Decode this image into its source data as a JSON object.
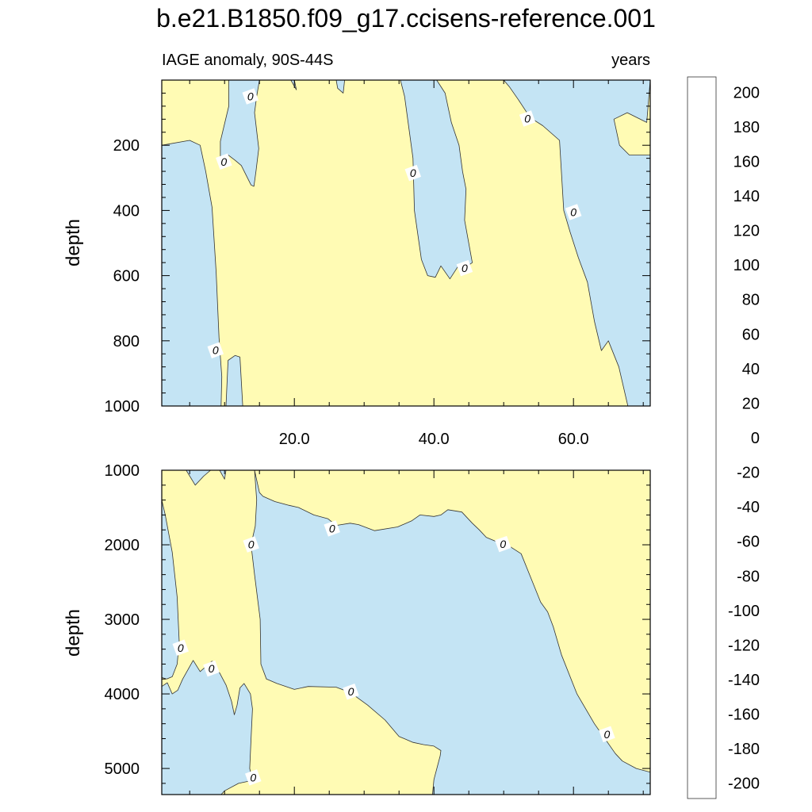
{
  "title": "b.e21.B1850.f09_g17.ccisens-reference.001",
  "subtitle_left": "IAGE anomaly, 90S-44S",
  "subtitle_right": "years",
  "colors": {
    "positive_fill": "#fffbb4",
    "negative_fill": "#c4e4f4",
    "contour_line": "#333333"
  },
  "chart_data": [
    {
      "type": "heatmap",
      "panel": "upper",
      "ylabel": "depth",
      "xlim": [
        1,
        71
      ],
      "ylim": [
        0,
        1000
      ],
      "y_reversed": true,
      "x_ticks": [
        20,
        40,
        60
      ],
      "x_tick_labels": [
        "20.0",
        "40.0",
        "60.0"
      ],
      "y_ticks": [
        200,
        400,
        600,
        800,
        1000
      ],
      "y_tick_labels": [
        "200",
        "400",
        "600",
        "800",
        "1000"
      ],
      "contour_labels": [
        {
          "text": "0",
          "x": 13.7,
          "y": 50
        },
        {
          "text": "0",
          "x": 9.9,
          "y": 250
        },
        {
          "text": "0",
          "x": 37.0,
          "y": 285
        },
        {
          "text": "0",
          "x": 44.4,
          "y": 577
        },
        {
          "text": "0",
          "x": 53.4,
          "y": 118
        },
        {
          "text": "0",
          "x": 60.0,
          "y": 405
        },
        {
          "text": "0",
          "x": 8.7,
          "y": 829
        }
      ],
      "negative_regions": [
        [
          [
            1,
            0
          ],
          [
            1,
            200
          ],
          [
            5,
            185
          ],
          [
            6.5,
            200
          ],
          [
            7.3,
            280
          ],
          [
            8.2,
            390
          ],
          [
            8.8,
            590
          ],
          [
            9.2,
            790
          ],
          [
            9.6,
            910
          ],
          [
            9.5,
            1000
          ],
          [
            1,
            1000
          ]
        ],
        [
          [
            10.5,
            860
          ],
          [
            11.5,
            845
          ],
          [
            12.2,
            850
          ],
          [
            12.6,
            1000
          ],
          [
            10.2,
            1000
          ]
        ],
        [
          [
            9.4,
            250
          ],
          [
            10.4,
            228
          ],
          [
            11.5,
            246
          ],
          [
            12.4,
            262
          ],
          [
            13.8,
            322
          ],
          [
            14.2,
            326
          ],
          [
            14.5,
            280
          ],
          [
            14.9,
            210
          ],
          [
            14.3,
            100
          ],
          [
            14.6,
            50
          ],
          [
            15,
            0
          ],
          [
            10.6,
            0
          ],
          [
            10.6,
            80
          ],
          [
            9.4,
            188
          ]
        ],
        [
          [
            19.5,
            0
          ],
          [
            20.3,
            30
          ],
          [
            20,
            0
          ]
        ],
        [
          [
            26,
            0
          ],
          [
            26.2,
            25
          ],
          [
            27,
            40
          ],
          [
            27.2,
            0
          ]
        ],
        [
          [
            35.2,
            0
          ],
          [
            35.8,
            50
          ],
          [
            37,
            240
          ],
          [
            37.2,
            400
          ],
          [
            38.2,
            550
          ],
          [
            39.1,
            600
          ],
          [
            40.2,
            605
          ],
          [
            41,
            570
          ],
          [
            42.3,
            610
          ],
          [
            43.5,
            570
          ],
          [
            44.5,
            575
          ],
          [
            45.5,
            560
          ],
          [
            44.4,
            430
          ],
          [
            44.6,
            335
          ],
          [
            44.1,
            280
          ],
          [
            43.6,
            200
          ],
          [
            42.5,
            130
          ],
          [
            41.6,
            40
          ],
          [
            40.4,
            0
          ]
        ],
        [
          [
            50,
            0
          ],
          [
            50.8,
            20
          ],
          [
            52.1,
            60
          ],
          [
            53.8,
            115
          ],
          [
            55.6,
            140
          ],
          [
            58,
            185
          ],
          [
            58.6,
            400
          ],
          [
            59.5,
            465
          ],
          [
            60.7,
            545
          ],
          [
            62,
            620
          ],
          [
            63,
            740
          ],
          [
            64,
            830
          ],
          [
            65,
            800
          ],
          [
            66.5,
            880
          ],
          [
            67.8,
            1000
          ],
          [
            71,
            1000
          ],
          [
            71,
            230
          ],
          [
            68,
            230
          ],
          [
            66.6,
            200
          ],
          [
            65.8,
            120
          ],
          [
            67.7,
            100
          ],
          [
            70.5,
            130
          ],
          [
            71,
            0
          ]
        ]
      ]
    },
    {
      "type": "heatmap",
      "panel": "lower",
      "ylabel": "depth",
      "xlim": [
        1,
        71
      ],
      "ylim": [
        1000,
        5350
      ],
      "y_reversed": true,
      "x_ticks": [
        20,
        40,
        60
      ],
      "x_tick_labels": [
        "",
        "",
        ""
      ],
      "y_ticks": [
        1000,
        2000,
        3000,
        4000,
        5000
      ],
      "y_tick_labels": [
        "1000",
        "2000",
        "3000",
        "4000",
        "5000"
      ],
      "contour_labels": [
        {
          "text": "0",
          "x": 13.8,
          "y": 1995
        },
        {
          "text": "0",
          "x": 25.4,
          "y": 1780
        },
        {
          "text": "0",
          "x": 49.9,
          "y": 1990
        },
        {
          "text": "0",
          "x": 3.7,
          "y": 3380
        },
        {
          "text": "0",
          "x": 8.1,
          "y": 3660
        },
        {
          "text": "0",
          "x": 28.1,
          "y": 3970
        },
        {
          "text": "0",
          "x": 64.8,
          "y": 4540
        },
        {
          "text": "0",
          "x": 14.1,
          "y": 5120
        }
      ],
      "negative_regions": [
        [
          [
            1,
            1000
          ],
          [
            1,
            1400
          ],
          [
            1.5,
            1600
          ],
          [
            2.5,
            2100
          ],
          [
            3.2,
            2700
          ],
          [
            3.5,
            3300
          ],
          [
            3.2,
            3600
          ],
          [
            2.5,
            3770
          ],
          [
            1.7,
            3800
          ],
          [
            1,
            3780
          ]
        ],
        [
          [
            1,
            3900
          ],
          [
            1.8,
            3850
          ],
          [
            2.5,
            4000
          ],
          [
            3.3,
            3950
          ],
          [
            4,
            3800
          ],
          [
            5.5,
            3550
          ],
          [
            6.5,
            3700
          ],
          [
            8.2,
            3560
          ],
          [
            9.3,
            3720
          ],
          [
            10.2,
            3880
          ],
          [
            11,
            4100
          ],
          [
            11.4,
            4280
          ],
          [
            11.8,
            4150
          ],
          [
            12.2,
            3920
          ],
          [
            12.8,
            3860
          ],
          [
            13.7,
            4000
          ],
          [
            14,
            4200
          ],
          [
            13.8,
            4600
          ],
          [
            13.6,
            5000
          ],
          [
            14,
            5160
          ],
          [
            12,
            5200
          ],
          [
            10,
            5300
          ],
          [
            9.5,
            5350
          ],
          [
            1,
            5350
          ]
        ],
        [
          [
            4.5,
            1000
          ],
          [
            5.8,
            1200
          ],
          [
            7,
            1080
          ],
          [
            8,
            1000
          ]
        ],
        [
          [
            9.3,
            1000
          ],
          [
            10,
            1120
          ],
          [
            10.2,
            1000
          ]
        ],
        [
          [
            14.3,
            1000
          ],
          [
            14.6,
            1400
          ],
          [
            14.4,
            1750
          ],
          [
            13.8,
            2000
          ],
          [
            14.3,
            2400
          ],
          [
            15.1,
            3000
          ],
          [
            15.2,
            3600
          ],
          [
            16,
            3800
          ],
          [
            17.5,
            3860
          ],
          [
            20,
            3940
          ],
          [
            22,
            3900
          ],
          [
            26,
            3910
          ],
          [
            28,
            3980
          ],
          [
            30.5,
            4150
          ],
          [
            33,
            4350
          ],
          [
            35,
            4570
          ],
          [
            37,
            4650
          ],
          [
            38.5,
            4680
          ],
          [
            40,
            4700
          ],
          [
            41,
            4760
          ],
          [
            40.9,
            4830
          ],
          [
            40,
            5150
          ],
          [
            39.8,
            5350
          ],
          [
            71,
            5350
          ],
          [
            71,
            5050
          ],
          [
            69,
            5000
          ],
          [
            67,
            4900
          ],
          [
            66,
            4800
          ],
          [
            63,
            4400
          ],
          [
            60.5,
            4000
          ],
          [
            58.3,
            3480
          ],
          [
            57.1,
            3100
          ],
          [
            56.3,
            2900
          ],
          [
            55.3,
            2770
          ],
          [
            53.7,
            2400
          ],
          [
            52.5,
            2120
          ],
          [
            51,
            2030
          ],
          [
            49.8,
            1990
          ],
          [
            47.5,
            1900
          ],
          [
            46.5,
            1800
          ],
          [
            45.5,
            1710
          ],
          [
            44,
            1560
          ],
          [
            42,
            1530
          ],
          [
            41,
            1600
          ],
          [
            40,
            1620
          ],
          [
            38,
            1600
          ],
          [
            36.8,
            1680
          ],
          [
            34.8,
            1760
          ],
          [
            31.5,
            1810
          ],
          [
            29.2,
            1730
          ],
          [
            28,
            1710
          ],
          [
            26,
            1740
          ],
          [
            24.8,
            1650
          ],
          [
            22.8,
            1600
          ],
          [
            20.6,
            1500
          ],
          [
            19.2,
            1470
          ],
          [
            17.2,
            1420
          ],
          [
            15.5,
            1350
          ],
          [
            15,
            1300
          ]
        ]
      ]
    }
  ],
  "colorbar": {
    "tick_labels": [
      "200",
      "180",
      "160",
      "140",
      "120",
      "100",
      "80",
      "60",
      "40",
      "20",
      "0",
      "-20",
      "-40",
      "-60",
      "-80",
      "-100",
      "-120",
      "-140",
      "-160",
      "-180",
      "-200"
    ],
    "boxes": [
      "#ffb4b4",
      "#f07878",
      "#dc3c3c",
      "#cc1010",
      "#dc0000",
      "#e60000",
      "#f00000",
      "#ff0a00",
      "#ff2800",
      "#ff4600",
      "#ff5a00",
      "#ff6a00",
      "#ff7800",
      "#ff8700",
      "#ff9600",
      "#ffa500",
      "#ffb400",
      "#ffc000",
      "#ffce10",
      "#ffd820",
      "#ffe240",
      "#ffe860",
      "#fff08c",
      "#fffbb4",
      "#c4e4f4",
      "#b0dcf0",
      "#9cd4ee",
      "#88cdef",
      "#70c8f4",
      "#50c0f8",
      "#30b8fa",
      "#10b0fc",
      "#0aa0fa",
      "#0a90f8",
      "#1480f4",
      "#2070ee",
      "#2a62e6",
      "#3254dc",
      "#3a46d4",
      "#3a3ae0",
      "#2e2ee8",
      "#2222f0",
      "#1414f8",
      "#0a0aff",
      "#3c18f4",
      "#5a1ee8",
      "#7828e8"
    ]
  }
}
